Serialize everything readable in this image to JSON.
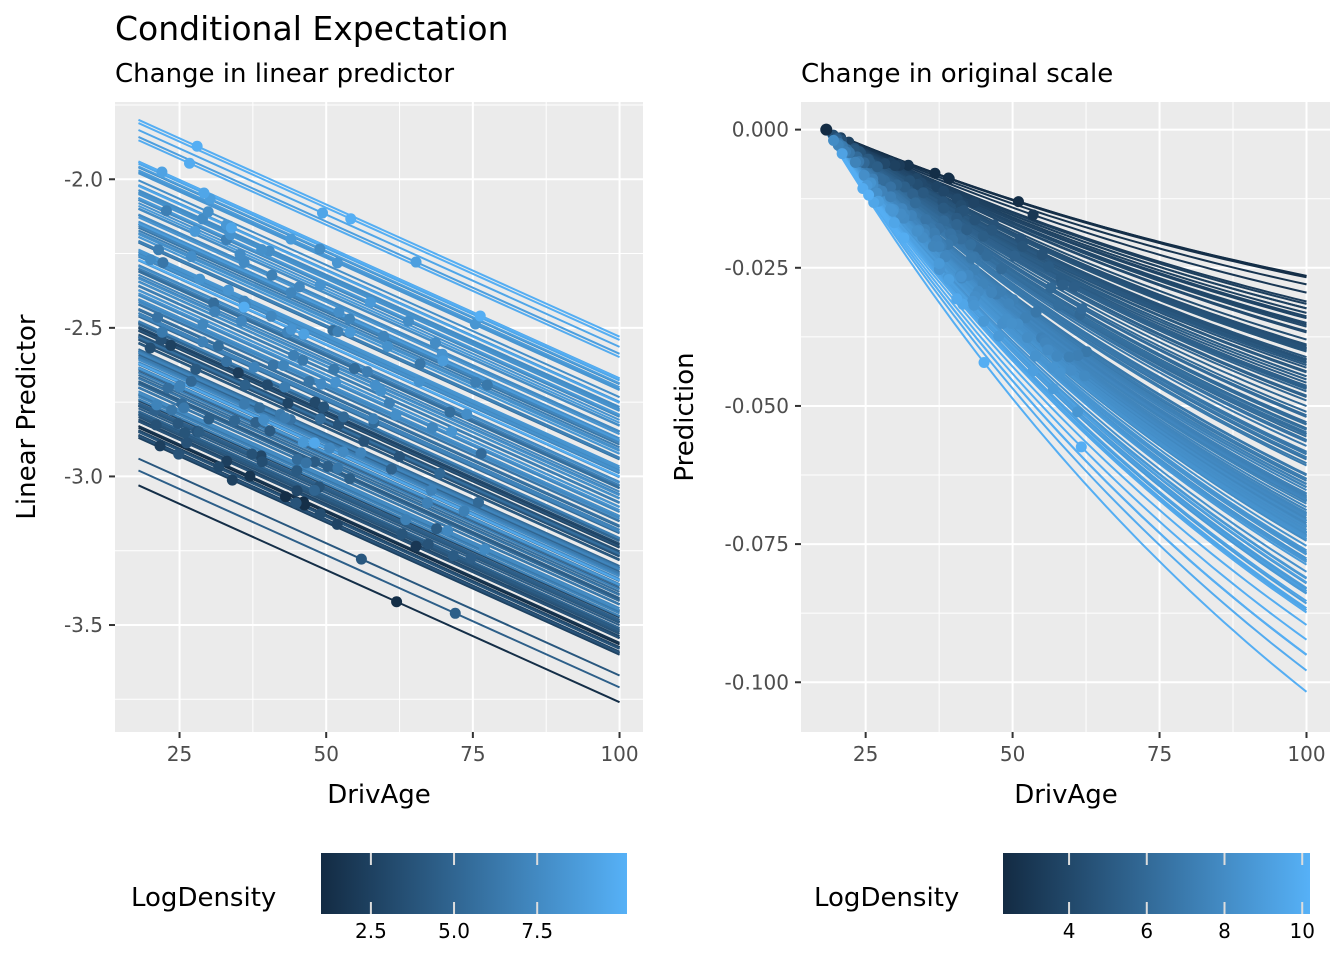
{
  "chart_data": [
    {
      "type": "line",
      "panel": "left",
      "title": "Conditional Expectation",
      "subtitle": "Change in linear predictor",
      "xlabel": "DrivAge",
      "ylabel": "Linear Predictor",
      "xlim": [
        14,
        104
      ],
      "ylim": [
        -3.86,
        -1.74
      ],
      "xticks": [
        25,
        50,
        75,
        100
      ],
      "xtick_labels": [
        "25",
        "50",
        "75",
        "100"
      ],
      "yticks": [
        -2.0,
        -2.5,
        -3.0,
        -3.5
      ],
      "ytick_labels": [
        "-2.0",
        "-2.5",
        "-3.0",
        "-3.5"
      ],
      "grid": true,
      "x_range": [
        18,
        100
      ],
      "slope_per_year": -0.0089,
      "description": "Individual conditional expectation (ICE) lines, one per observation, colored by LogDensity; each line linear in DrivAge with a common slope; a point marks each observation's actual DrivAge.",
      "series": [
        {
          "intercept_at_18": -1.8,
          "log_density": 10.0,
          "obs_age": 28
        },
        {
          "intercept_at_18": -1.94,
          "log_density": 9.2,
          "obs_age": 22
        },
        {
          "intercept_at_18": -1.97,
          "log_density": 8.6,
          "obs_age": 44
        },
        {
          "intercept_at_18": -2.02,
          "log_density": 8.4,
          "obs_age": 33
        },
        {
          "intercept_at_18": -2.05,
          "log_density": 7.9,
          "obs_age": 39
        },
        {
          "intercept_at_18": -2.08,
          "log_density": 8.1,
          "obs_age": 49
        },
        {
          "intercept_at_18": -2.12,
          "log_density": 7.6,
          "obs_age": 36
        },
        {
          "intercept_at_18": -2.15,
          "log_density": 7.2,
          "obs_age": 44
        },
        {
          "intercept_at_18": -2.18,
          "log_density": 7.8,
          "obs_age": 27
        },
        {
          "intercept_at_18": -2.21,
          "log_density": 6.9,
          "obs_age": 52
        },
        {
          "intercept_at_18": -2.25,
          "log_density": 7.4,
          "obs_age": 36
        },
        {
          "intercept_at_18": -2.27,
          "log_density": 9.9,
          "obs_age": 36
        },
        {
          "intercept_at_18": -2.3,
          "log_density": 6.7,
          "obs_age": 57
        },
        {
          "intercept_at_18": -2.33,
          "log_density": 7.0,
          "obs_age": 31
        },
        {
          "intercept_at_18": -2.36,
          "log_density": 6.4,
          "obs_age": 46
        },
        {
          "intercept_at_18": -2.39,
          "log_density": 7.3,
          "obs_age": 29
        },
        {
          "intercept_at_18": -2.42,
          "log_density": 6.1,
          "obs_age": 41
        },
        {
          "intercept_at_18": -2.45,
          "log_density": 6.8,
          "obs_age": 58
        },
        {
          "intercept_at_18": -2.48,
          "log_density": 5.9,
          "obs_age": 33
        },
        {
          "intercept_at_18": -2.5,
          "log_density": 2.2,
          "obs_age": 35
        },
        {
          "intercept_at_18": -2.53,
          "log_density": 5.6,
          "obs_age": 49
        },
        {
          "intercept_at_18": -2.55,
          "log_density": 3.4,
          "obs_age": 20
        },
        {
          "intercept_at_18": -2.58,
          "log_density": 6.6,
          "obs_age": 43
        },
        {
          "intercept_at_18": -2.6,
          "log_density": 5.2,
          "obs_age": 27
        },
        {
          "intercept_at_18": -2.62,
          "log_density": 9.6,
          "obs_age": 48
        },
        {
          "intercept_at_18": -2.64,
          "log_density": 4.8,
          "obs_age": 38
        },
        {
          "intercept_at_18": -2.67,
          "log_density": 6.2,
          "obs_age": 52
        },
        {
          "intercept_at_18": -2.7,
          "log_density": 4.5,
          "obs_age": 30
        },
        {
          "intercept_at_18": -2.72,
          "log_density": 7.5,
          "obs_age": 77
        },
        {
          "intercept_at_18": -2.74,
          "log_density": 4.2,
          "obs_age": 45
        },
        {
          "intercept_at_18": -2.76,
          "log_density": 3.9,
          "obs_age": 28
        },
        {
          "intercept_at_18": -2.78,
          "log_density": 5.0,
          "obs_age": 48
        },
        {
          "intercept_at_18": -2.8,
          "log_density": 3.6,
          "obs_age": 21
        },
        {
          "intercept_at_18": -2.83,
          "log_density": 1.6,
          "obs_age": 37
        },
        {
          "intercept_at_18": -2.85,
          "log_density": 3.3,
          "obs_age": 49
        },
        {
          "intercept_at_18": -2.87,
          "log_density": 2.5,
          "obs_age": 34
        },
        {
          "intercept_at_18": -2.94,
          "log_density": 4.0,
          "obs_age": 56
        },
        {
          "intercept_at_18": -2.98,
          "log_density": 4.6,
          "obs_age": 72
        },
        {
          "intercept_at_18": -3.03,
          "log_density": 1.2,
          "obs_age": 62
        }
      ]
    },
    {
      "type": "line",
      "panel": "right",
      "subtitle": "Change in original scale",
      "xlabel": "DrivAge",
      "ylabel": "Prediction",
      "xlim": [
        14,
        104
      ],
      "ylim": [
        -0.109,
        0.005
      ],
      "xticks": [
        25,
        50,
        75,
        100
      ],
      "xtick_labels": [
        "25",
        "50",
        "75",
        "100"
      ],
      "yticks": [
        0.0,
        -0.025,
        -0.05,
        -0.075,
        -0.1
      ],
      "ytick_labels": [
        "0.000",
        "-0.025",
        "-0.050",
        "-0.075",
        "-0.100"
      ],
      "grid": true,
      "x_range": [
        18,
        100
      ],
      "description": "Centered ICE curves on the response scale: exp(linear predictor at age) minus exp(linear predictor at 18); all curves start at 0 at age 18 and decrease; values at age 100 range from about -0.026 (darkest) to -0.104 (lightest).",
      "endpoints_at_100": {
        "min": -0.104,
        "max": -0.026
      }
    }
  ],
  "legends": [
    {
      "title": "LogDensity",
      "range": [
        1.0,
        10.2
      ],
      "ticks": [
        2.5,
        5.0,
        7.5
      ],
      "tick_labels": [
        "2.5",
        "5.0",
        "7.5"
      ],
      "color_low": "#132B43",
      "color_high": "#56B1F7"
    },
    {
      "title": "LogDensity",
      "range": [
        2.3,
        10.2
      ],
      "ticks": [
        4,
        6,
        8,
        10
      ],
      "tick_labels": [
        "4",
        "6",
        "8",
        "10"
      ],
      "color_low": "#132B43",
      "color_high": "#56B1F7"
    }
  ],
  "colors": {
    "panel_background": "#EBEBEB",
    "grid_major": "#FFFFFF",
    "tick_text": "#4D4D4D",
    "gradient_low": "#132B43",
    "gradient_high": "#56B1F7"
  }
}
